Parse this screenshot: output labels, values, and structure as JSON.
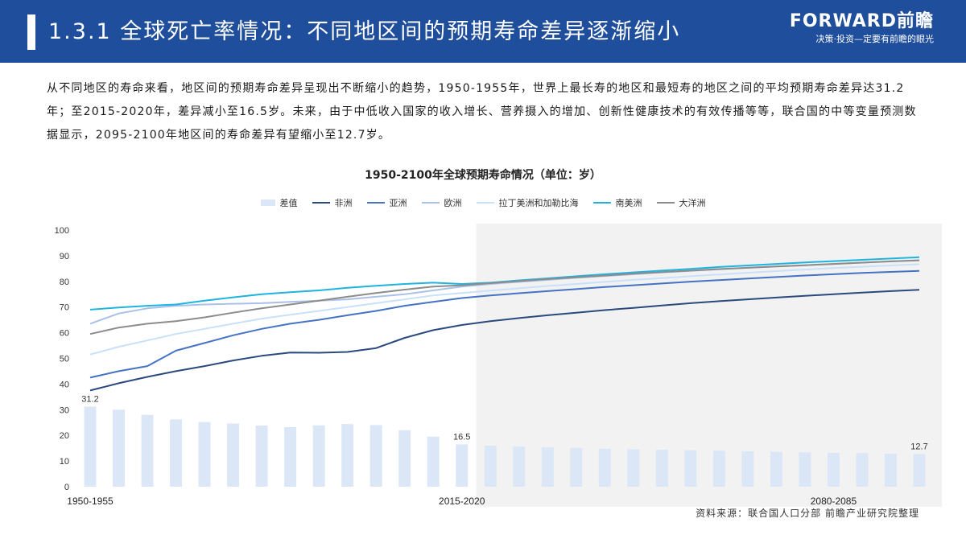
{
  "header": {
    "title": "1.3.1 全球死亡率情况：不同地区间的预期寿命差异逐渐缩小",
    "logo_name": "FORWARD前瞻",
    "logo_slogan": "决策·投资—定要有前瞻的眼光"
  },
  "intro": "从不同地区的寿命来看，地区间的预期寿命差异呈现出不断缩小的趋势，1950-1955年，世界上最长寿的地区和最短寿的地区之间的平均预期寿命差异达31.2年；至2015-2020年，差异减小至16.5岁。未来，由于中低收入国家的收入增长、营养摄入的增加、创新性健康技术的有效传播等等，联合国的中等变量预测数据显示，2095-2100年地区间的寿命差异有望缩小至12.7岁。",
  "source": "资料来源：联合国人口分部 前瞻产业研究院整理",
  "colors": {
    "header_bg": "#1f4e9c",
    "forecast_bg": "#f2f2f2",
    "bar": "#dbe6f7"
  },
  "chart_data": {
    "type": "bar+line",
    "title": "1950-2100年全球预期寿命情况（单位：岁）",
    "x_tick_labels": [
      "1950-1955",
      "2015-2020",
      "2080-2085"
    ],
    "x_tick_index": [
      0,
      13,
      26
    ],
    "n_periods": 30,
    "ylim": [
      0,
      100
    ],
    "yticks": [
      0,
      10,
      20,
      30,
      40,
      50,
      60,
      70,
      80,
      90,
      100
    ],
    "legend_position": "top",
    "forecast_start_index": 14,
    "bar_labels": [
      {
        "index": 0,
        "text": "31.2"
      },
      {
        "index": 13,
        "text": "16.5"
      },
      {
        "index": 29,
        "text": "12.7"
      }
    ],
    "bar_series": {
      "name": "差值",
      "color": "#dbe6f7",
      "values": [
        31.2,
        30.0,
        28.0,
        26.2,
        25.2,
        24.6,
        23.8,
        23.2,
        23.9,
        24.4,
        24.0,
        22.0,
        19.5,
        16.5,
        16.0,
        15.6,
        15.3,
        15.1,
        14.8,
        14.6,
        14.4,
        14.2,
        14.0,
        13.8,
        13.6,
        13.4,
        13.2,
        13.1,
        12.9,
        12.7
      ]
    },
    "series": [
      {
        "name": "非洲",
        "color": "#2a4a7f",
        "values": [
          37.5,
          40.3,
          42.8,
          45.0,
          47.0,
          49.2,
          51.0,
          52.3,
          52.2,
          52.5,
          54.0,
          58.0,
          61.0,
          63.0,
          64.5,
          65.7,
          66.8,
          67.8,
          68.8,
          69.7,
          70.6,
          71.5,
          72.3,
          73.0,
          73.7,
          74.4,
          75.0,
          75.6,
          76.2,
          76.7
        ]
      },
      {
        "name": "亚洲",
        "color": "#4472c4",
        "values": [
          42.5,
          45.0,
          47.0,
          53.0,
          56.0,
          59.0,
          61.5,
          63.5,
          65.0,
          66.8,
          68.5,
          70.5,
          72.0,
          73.5,
          74.5,
          75.4,
          76.2,
          77.0,
          77.8,
          78.5,
          79.2,
          79.9,
          80.5,
          81.1,
          81.7,
          82.3,
          82.8,
          83.3,
          83.7,
          84.1
        ]
      },
      {
        "name": "欧洲",
        "color": "#a9c1e8",
        "values": [
          63.5,
          67.5,
          69.5,
          70.5,
          71.0,
          71.3,
          71.5,
          72.0,
          72.5,
          73.0,
          74.0,
          75.0,
          76.5,
          78.0,
          79.0,
          79.8,
          80.6,
          81.4,
          82.1,
          82.8,
          83.5,
          84.1,
          84.7,
          85.3,
          85.8,
          86.3,
          86.8,
          87.3,
          87.8,
          88.2
        ]
      },
      {
        "name": "拉丁美洲和加勒比海",
        "color": "#c8e1fa",
        "values": [
          51.5,
          54.5,
          57.0,
          59.5,
          61.5,
          63.5,
          65.5,
          67.0,
          68.5,
          70.0,
          71.5,
          73.0,
          74.5,
          75.5,
          76.4,
          77.3,
          78.2,
          79.0,
          79.8,
          80.6,
          81.3,
          82.0,
          82.7,
          83.4,
          84.0,
          84.6,
          85.2,
          85.7,
          86.2,
          86.7
        ]
      },
      {
        "name": "南美洲",
        "color": "#1fb4e0",
        "values": [
          69.0,
          69.8,
          70.5,
          71.0,
          72.5,
          73.8,
          75.0,
          75.8,
          76.5,
          77.5,
          78.3,
          79.0,
          79.5,
          79.0,
          79.5,
          80.4,
          81.2,
          82.0,
          82.8,
          83.5,
          84.2,
          84.9,
          85.6,
          86.2,
          86.8,
          87.4,
          87.9,
          88.4,
          88.9,
          89.4
        ]
      },
      {
        "name": "大洋洲",
        "color": "#8c8c8c",
        "values": [
          59.5,
          62.0,
          63.5,
          64.5,
          66.0,
          67.8,
          69.5,
          71.0,
          72.5,
          74.0,
          75.5,
          76.8,
          78.0,
          78.5,
          79.3,
          80.1,
          80.9,
          81.6,
          82.3,
          83.0,
          83.6,
          84.2,
          84.8,
          85.3,
          85.8,
          86.3,
          86.8,
          87.3,
          87.8,
          88.2
        ]
      }
    ]
  }
}
